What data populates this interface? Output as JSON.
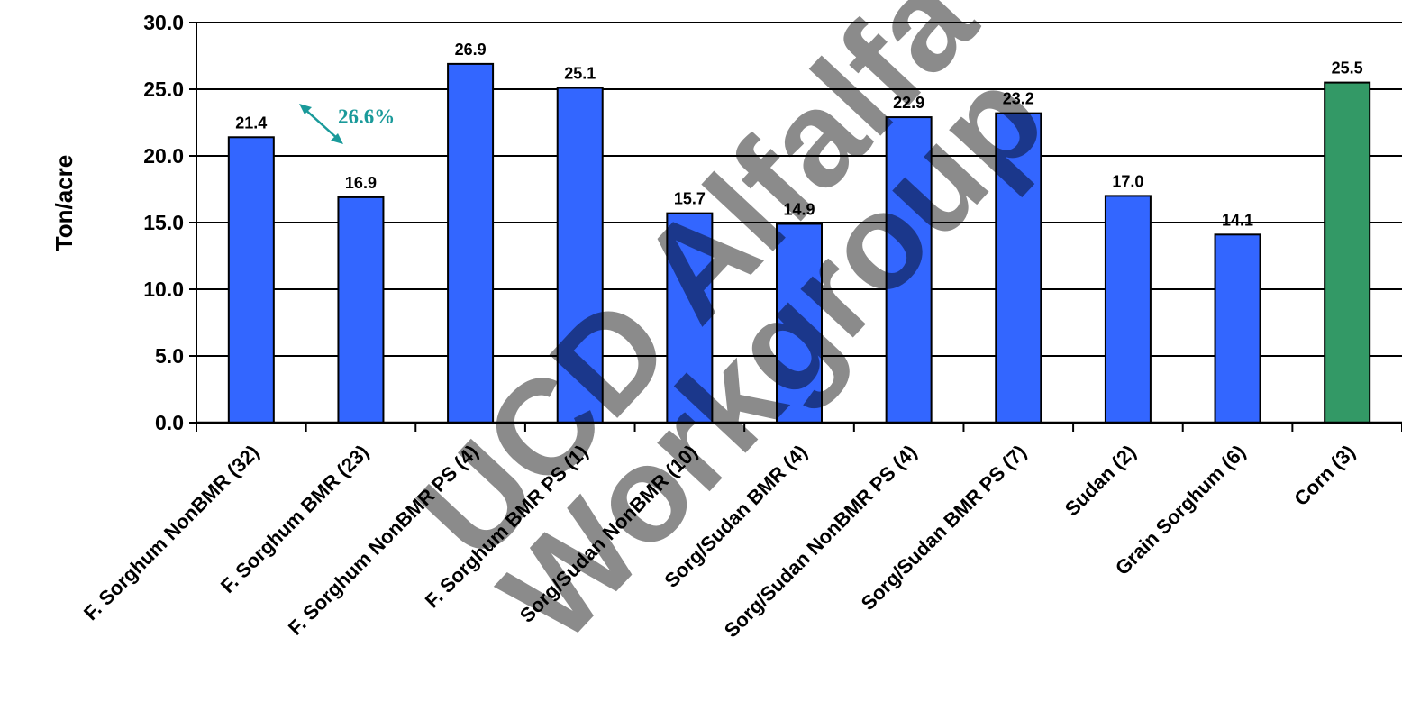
{
  "chart_data": {
    "type": "bar",
    "ylabel": "Ton/acre",
    "xlabel": "",
    "ylim": [
      0,
      30
    ],
    "yticks": [
      "0.0",
      "5.0",
      "10.0",
      "15.0",
      "20.0",
      "25.0",
      "30.0"
    ],
    "grid": true,
    "categories": [
      "F. Sorghum NonBMR (32)",
      "F. Sorghum BMR (23)",
      "F. Sorghum NonBMR PS (4)",
      "F. Sorghum BMR PS (1)",
      "Sorg/Sudan NonBMR (10)",
      "Sorg/Sudan BMR (4)",
      "Sorg/Sudan NonBMR PS (4)",
      "Sorg/Sudan BMR PS (7)",
      "Sudan (2)",
      "Grain Sorghum (6)",
      "Corn (3)"
    ],
    "values": [
      21.4,
      16.9,
      26.9,
      25.1,
      15.7,
      14.9,
      22.9,
      23.2,
      17.0,
      14.1,
      25.5
    ],
    "data_labels": [
      "21.4",
      "16.9",
      "26.9",
      "25.1",
      "15.7",
      "14.9",
      "22.9",
      "23.2",
      "17.0",
      "14.1",
      "25.5"
    ],
    "colors": [
      "#3366ff",
      "#3366ff",
      "#3366ff",
      "#3366ff",
      "#3366ff",
      "#3366ff",
      "#3366ff",
      "#3366ff",
      "#3366ff",
      "#3366ff",
      "#339966"
    ],
    "annotation": {
      "text": "26.6%",
      "color": "#1a9a9a"
    }
  },
  "watermark": {
    "line1": "UCD Alfalfa",
    "line2": "Workgroup"
  }
}
